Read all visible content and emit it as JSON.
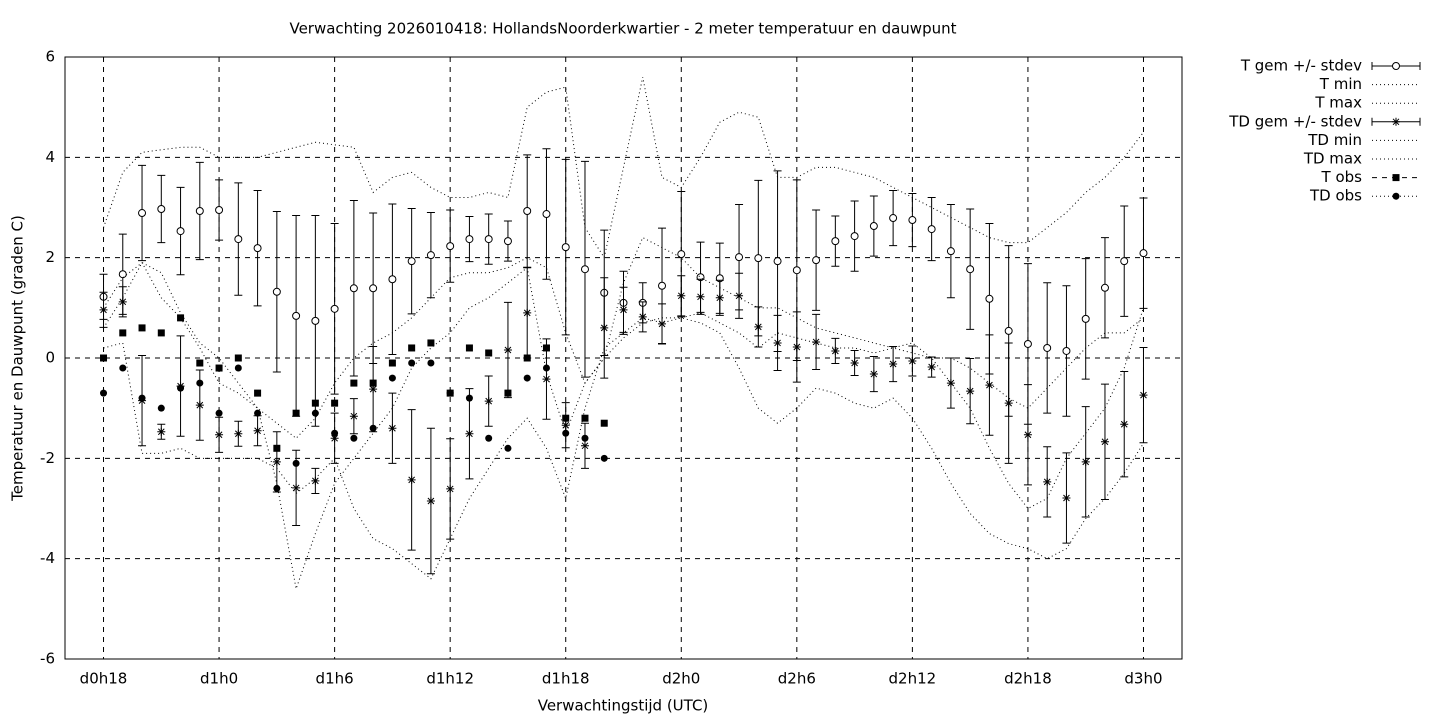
{
  "chart_data": {
    "type": "errorbar",
    "title": "Verwachting 2026010418: HollandsNoorderkwartier - 2 meter temperatuur en dauwpunt",
    "xlabel": "Verwachtingstijd (UTC)",
    "ylabel": "Temperatuur en Dauwpunt (graden C)",
    "xlim": [
      16,
      74
    ],
    "ylim": [
      -6,
      6
    ],
    "xticks": [
      {
        "value": 18,
        "label": "d0h18"
      },
      {
        "value": 24,
        "label": "d1h0"
      },
      {
        "value": 30,
        "label": "d1h6"
      },
      {
        "value": 36,
        "label": "d1h12"
      },
      {
        "value": 42,
        "label": "d1h18"
      },
      {
        "value": 48,
        "label": "d2h0"
      },
      {
        "value": 54,
        "label": "d2h6"
      },
      {
        "value": 60,
        "label": "d2h12"
      },
      {
        "value": 66,
        "label": "d2h18"
      },
      {
        "value": 72,
        "label": "d3h0"
      }
    ],
    "yticks": [
      -6,
      -4,
      -2,
      0,
      2,
      4,
      6
    ],
    "grid": true,
    "legend": "outside-right",
    "x": [
      18,
      19,
      20,
      21,
      22,
      23,
      24,
      25,
      26,
      27,
      28,
      29,
      30,
      31,
      32,
      33,
      34,
      35,
      36,
      37,
      38,
      39,
      40,
      41,
      42,
      43,
      44,
      45,
      46,
      47,
      48,
      49,
      50,
      51,
      52,
      53,
      54,
      55,
      56,
      57,
      58,
      59,
      60,
      61,
      62,
      63,
      64,
      65,
      66,
      67,
      68,
      69,
      70,
      71,
      72
    ],
    "series": [
      {
        "name": "T gem +/- stdev",
        "color": "#000000",
        "marker": "open-circle",
        "values": [
          1.22,
          1.67,
          2.89,
          2.97,
          2.53,
          2.93,
          2.95,
          2.37,
          2.19,
          1.32,
          0.84,
          0.74,
          0.98,
          1.39,
          1.39,
          1.57,
          1.93,
          2.05,
          2.23,
          2.37,
          2.37,
          2.33,
          2.93,
          2.87,
          2.21,
          1.77,
          1.3,
          1.1,
          1.1,
          1.44,
          2.07,
          1.61,
          1.59,
          2.01,
          1.99,
          1.93,
          1.75,
          1.95,
          2.33,
          2.43,
          2.63,
          2.79,
          2.75,
          2.57,
          2.13,
          1.77,
          1.18,
          0.54,
          0.28,
          0.2,
          0.14,
          0.78,
          1.4,
          1.93,
          2.09
        ],
        "errors": [
          0.45,
          0.8,
          0.95,
          0.67,
          0.87,
          0.97,
          0.6,
          1.12,
          1.15,
          1.6,
          2.0,
          2.1,
          1.7,
          1.75,
          1.5,
          1.5,
          1.05,
          0.85,
          0.72,
          0.45,
          0.5,
          0.4,
          1.12,
          1.3,
          1.75,
          2.15,
          1.25,
          0.63,
          0.4,
          1.15,
          1.25,
          0.7,
          0.7,
          1.05,
          1.55,
          1.8,
          1.8,
          1.0,
          0.5,
          0.7,
          0.6,
          0.55,
          0.53,
          0.63,
          0.93,
          1.2,
          1.5,
          1.7,
          1.6,
          1.3,
          1.3,
          1.2,
          1.0,
          1.1,
          1.1
        ]
      },
      {
        "name": "T min",
        "color": "#000000",
        "line": "dotted",
        "values": [
          0.6,
          1.2,
          1.9,
          1.7,
          0.9,
          0.3,
          0.0,
          -0.5,
          -1.0,
          -2.5,
          -4.6,
          -3.5,
          -2.5,
          -2.0,
          -1.5,
          -1.0,
          -0.2,
          0.2,
          0.5,
          1.0,
          1.2,
          1.5,
          1.8,
          -0.3,
          -1.5,
          -0.5,
          0.0,
          0.4,
          0.7,
          0.8,
          0.8,
          0.9,
          0.7,
          0.5,
          0.2,
          0.5,
          0.4,
          0.3,
          0.2,
          0.2,
          0.1,
          0.2,
          0.3,
          0.0,
          -0.5,
          -1.0,
          -1.8,
          -2.5,
          -3.0,
          -2.8,
          -2.0,
          -1.5,
          -1.0,
          -0.2,
          1.0
        ]
      },
      {
        "name": "T max",
        "color": "#000000",
        "line": "dotted",
        "values": [
          2.6,
          3.7,
          4.1,
          4.15,
          4.2,
          4.2,
          4.0,
          4.0,
          4.0,
          4.1,
          4.2,
          4.3,
          4.25,
          4.2,
          3.3,
          3.6,
          3.7,
          3.4,
          3.2,
          3.2,
          3.3,
          3.2,
          5.0,
          5.3,
          5.4,
          2.6,
          2.0,
          3.8,
          5.6,
          3.6,
          3.4,
          4.0,
          4.7,
          4.9,
          4.8,
          3.6,
          3.6,
          3.8,
          3.8,
          3.7,
          3.6,
          3.4,
          3.2,
          3.0,
          2.8,
          2.6,
          2.4,
          2.3,
          2.3,
          2.6,
          2.9,
          3.3,
          3.6,
          4.0,
          4.5
        ]
      },
      {
        "name": "TD gem +/- stdev",
        "color": "#000000",
        "marker": "asterisk",
        "values": [
          0.96,
          1.12,
          -0.85,
          -1.47,
          -0.56,
          -0.94,
          -1.53,
          -1.51,
          -1.45,
          -2.07,
          -2.59,
          -2.45,
          -1.6,
          -1.16,
          -0.62,
          -1.4,
          -2.43,
          -2.85,
          -2.61,
          -1.51,
          -0.86,
          0.16,
          0.9,
          -0.42,
          -1.34,
          -1.75,
          0.6,
          0.96,
          0.82,
          0.68,
          1.24,
          1.22,
          1.2,
          1.24,
          0.62,
          0.3,
          0.22,
          0.32,
          0.14,
          -0.1,
          -0.32,
          -0.12,
          -0.06,
          -0.18,
          -0.5,
          -0.66,
          -0.54,
          -0.9,
          -1.53,
          -2.47,
          -2.79,
          -2.07,
          -1.67,
          -1.32,
          -0.74
        ],
        "errors": [
          0.35,
          0.3,
          0.9,
          0.15,
          1.0,
          0.7,
          0.35,
          0.25,
          0.3,
          0.6,
          0.75,
          0.25,
          0.5,
          0.35,
          0.85,
          0.7,
          1.4,
          1.45,
          1.0,
          0.9,
          0.5,
          0.95,
          0.9,
          0.8,
          0.45,
          0.45,
          1.0,
          0.45,
          0.3,
          0.4,
          0.4,
          0.35,
          0.35,
          0.45,
          0.4,
          0.55,
          0.7,
          0.55,
          0.25,
          0.25,
          0.35,
          0.35,
          0.3,
          0.2,
          0.5,
          0.65,
          1.0,
          1.2,
          1.0,
          0.7,
          0.9,
          1.1,
          1.15,
          1.05,
          0.95
        ]
      },
      {
        "name": "TD min",
        "color": "#000000",
        "line": "dotted",
        "values": [
          0.2,
          0.3,
          -1.9,
          -1.9,
          -1.8,
          -2.0,
          -2.0,
          -2.0,
          -2.0,
          -2.2,
          -2.7,
          -2.4,
          -2.0,
          -3.0,
          -3.6,
          -3.8,
          -4.1,
          -4.4,
          -3.6,
          -2.8,
          -2.2,
          -1.6,
          -1.2,
          -1.8,
          -2.8,
          -1.0,
          0.2,
          0.5,
          0.8,
          0.7,
          0.8,
          0.7,
          0.5,
          -0.2,
          -1.0,
          -1.3,
          -1.0,
          -0.6,
          -0.7,
          -0.9,
          -1.0,
          -0.8,
          -1.2,
          -1.8,
          -2.5,
          -3.1,
          -3.5,
          -3.7,
          -3.8,
          -4.0,
          -3.8,
          -3.2,
          -2.8,
          -2.3,
          -1.7
        ]
      },
      {
        "name": "TD max",
        "color": "#000000",
        "line": "dotted",
        "values": [
          1.0,
          1.6,
          1.9,
          1.2,
          0.8,
          0.2,
          -0.5,
          -0.7,
          -1.0,
          -1.3,
          -1.6,
          -1.2,
          -0.5,
          0.0,
          0.3,
          0.5,
          0.8,
          1.2,
          1.6,
          1.7,
          1.7,
          1.8,
          2.0,
          1.8,
          0.5,
          -0.5,
          0.0,
          1.5,
          2.4,
          2.2,
          2.0,
          1.6,
          1.4,
          1.2,
          1.0,
          1.0,
          0.8,
          0.6,
          0.5,
          0.4,
          0.3,
          0.2,
          0.1,
          0.0,
          0.0,
          -0.2,
          -0.5,
          -0.8,
          -1.0,
          -0.6,
          -0.2,
          0.2,
          0.5,
          0.5,
          0.8
        ]
      },
      {
        "name": "T obs",
        "color": "#000000",
        "marker": "square",
        "values": [
          0.0,
          0.5,
          0.6,
          0.5,
          0.8,
          -0.1,
          -0.2,
          0.0,
          -0.7,
          -1.8,
          -1.1,
          -0.9,
          -0.9,
          -0.5,
          -0.5,
          -0.1,
          0.2,
          0.3,
          -0.7,
          0.2,
          0.1,
          -0.7,
          0.0,
          0.2,
          -1.2,
          -1.2,
          -1.3,
          null,
          null,
          null,
          null,
          null,
          null,
          null,
          null,
          null,
          null,
          null,
          null,
          null,
          null,
          null,
          null,
          null,
          null,
          null,
          null,
          null,
          null,
          null,
          null,
          null,
          null,
          null,
          null
        ]
      },
      {
        "name": "TD obs",
        "color": "#000000",
        "marker": "dot",
        "values": [
          -0.7,
          -0.2,
          -0.8,
          -1.0,
          -0.6,
          -0.5,
          -1.1,
          -0.2,
          -1.1,
          -2.6,
          -2.1,
          -1.1,
          -1.5,
          -1.6,
          -1.4,
          -0.4,
          -0.1,
          -0.1,
          -0.7,
          -0.8,
          -1.6,
          -1.8,
          -0.4,
          -0.2,
          -1.5,
          -1.6,
          -2.0,
          null,
          null,
          null,
          null,
          null,
          null,
          null,
          null,
          null,
          null,
          null,
          null,
          null,
          null,
          null,
          null,
          null,
          null,
          null,
          null,
          null,
          null,
          null,
          null,
          null,
          null,
          null,
          null
        ]
      }
    ]
  }
}
